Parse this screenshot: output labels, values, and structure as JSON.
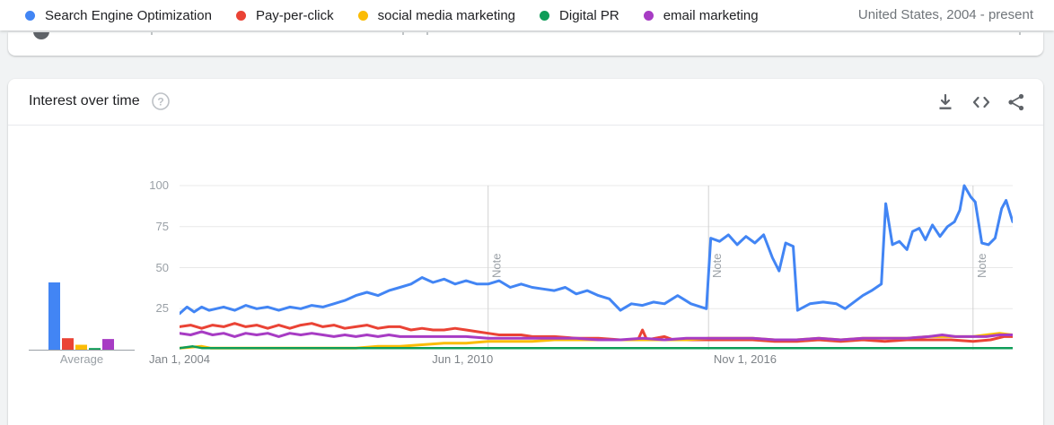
{
  "legend": {
    "items": [
      {
        "label": "Search Engine Optimization",
        "color": "#4285f4"
      },
      {
        "label": "Pay-per-click",
        "color": "#ea4335"
      },
      {
        "label": "social media marketing",
        "color": "#fbbc05"
      },
      {
        "label": "Digital PR",
        "color": "#0f9d58"
      },
      {
        "label": "email marketing",
        "color": "#a73cc4"
      }
    ],
    "region_period": "United States, 2004 - present"
  },
  "widget": {
    "title": "Interest over time",
    "icons": {
      "help": "help-circle-icon",
      "download": "download-icon",
      "embed": "embed-code-icon",
      "share": "share-icon"
    }
  },
  "chart_data": {
    "type": "line",
    "title": "Interest over time",
    "x_range": [
      2004.0,
      2022.9
    ],
    "ylim": [
      0,
      100
    ],
    "y_ticks": [
      25,
      50,
      75,
      100
    ],
    "x_ticks": [
      {
        "year": 2004.0,
        "label": "Jan 1, 2004"
      },
      {
        "year": 2010.42,
        "label": "Jun 1, 2010"
      },
      {
        "year": 2016.83,
        "label": "Nov 1, 2016"
      }
    ],
    "notes": [
      {
        "year": 2011.0,
        "label": "Note"
      },
      {
        "year": 2016.0,
        "label": "Note"
      },
      {
        "year": 2022.0,
        "label": "Note"
      }
    ],
    "grid": "horizontal gridlines at y ticks; vertical lines only at notes",
    "legend_position": "top",
    "series": [
      {
        "name": "Search Engine Optimization",
        "color": "#4285f4",
        "width": 3,
        "points": [
          [
            2004.0,
            22
          ],
          [
            2004.17,
            26
          ],
          [
            2004.33,
            23
          ],
          [
            2004.5,
            26
          ],
          [
            2004.67,
            24
          ],
          [
            2004.83,
            25
          ],
          [
            2005.0,
            26
          ],
          [
            2005.25,
            24
          ],
          [
            2005.5,
            27
          ],
          [
            2005.75,
            25
          ],
          [
            2006.0,
            26
          ],
          [
            2006.25,
            24
          ],
          [
            2006.5,
            26
          ],
          [
            2006.75,
            25
          ],
          [
            2007.0,
            27
          ],
          [
            2007.25,
            26
          ],
          [
            2007.5,
            28
          ],
          [
            2007.75,
            30
          ],
          [
            2008.0,
            33
          ],
          [
            2008.25,
            35
          ],
          [
            2008.5,
            33
          ],
          [
            2008.75,
            36
          ],
          [
            2009.0,
            38
          ],
          [
            2009.25,
            40
          ],
          [
            2009.5,
            44
          ],
          [
            2009.75,
            41
          ],
          [
            2010.0,
            43
          ],
          [
            2010.25,
            40
          ],
          [
            2010.5,
            42
          ],
          [
            2010.75,
            40
          ],
          [
            2011.0,
            40
          ],
          [
            2011.25,
            42
          ],
          [
            2011.5,
            38
          ],
          [
            2011.75,
            40
          ],
          [
            2012.0,
            38
          ],
          [
            2012.25,
            37
          ],
          [
            2012.5,
            36
          ],
          [
            2012.75,
            38
          ],
          [
            2013.0,
            34
          ],
          [
            2013.25,
            36
          ],
          [
            2013.5,
            33
          ],
          [
            2013.75,
            31
          ],
          [
            2014.0,
            24
          ],
          [
            2014.25,
            28
          ],
          [
            2014.5,
            27
          ],
          [
            2014.75,
            29
          ],
          [
            2015.0,
            28
          ],
          [
            2015.3,
            33
          ],
          [
            2015.6,
            28
          ],
          [
            2015.95,
            25
          ],
          [
            2016.05,
            68
          ],
          [
            2016.25,
            66
          ],
          [
            2016.45,
            70
          ],
          [
            2016.65,
            64
          ],
          [
            2016.85,
            69
          ],
          [
            2017.05,
            65
          ],
          [
            2017.25,
            70
          ],
          [
            2017.45,
            56
          ],
          [
            2017.6,
            48
          ],
          [
            2017.75,
            65
          ],
          [
            2017.92,
            63
          ],
          [
            2018.02,
            24
          ],
          [
            2018.3,
            28
          ],
          [
            2018.6,
            29
          ],
          [
            2018.9,
            28
          ],
          [
            2019.1,
            25
          ],
          [
            2019.3,
            29
          ],
          [
            2019.5,
            33
          ],
          [
            2019.7,
            36
          ],
          [
            2019.92,
            40
          ],
          [
            2020.02,
            89
          ],
          [
            2020.17,
            64
          ],
          [
            2020.33,
            66
          ],
          [
            2020.5,
            61
          ],
          [
            2020.63,
            72
          ],
          [
            2020.78,
            74
          ],
          [
            2020.92,
            67
          ],
          [
            2021.08,
            76
          ],
          [
            2021.25,
            69
          ],
          [
            2021.42,
            75
          ],
          [
            2021.58,
            78
          ],
          [
            2021.7,
            85
          ],
          [
            2021.8,
            100
          ],
          [
            2021.95,
            93
          ],
          [
            2022.05,
            90
          ],
          [
            2022.2,
            65
          ],
          [
            2022.35,
            64
          ],
          [
            2022.5,
            68
          ],
          [
            2022.65,
            86
          ],
          [
            2022.75,
            91
          ],
          [
            2022.9,
            78
          ]
        ]
      },
      {
        "name": "Pay-per-click",
        "color": "#ea4335",
        "width": 3,
        "points": [
          [
            2004.0,
            14
          ],
          [
            2004.25,
            15
          ],
          [
            2004.5,
            13
          ],
          [
            2004.75,
            15
          ],
          [
            2005.0,
            14
          ],
          [
            2005.25,
            16
          ],
          [
            2005.5,
            14
          ],
          [
            2005.75,
            15
          ],
          [
            2006.0,
            13
          ],
          [
            2006.25,
            15
          ],
          [
            2006.5,
            13
          ],
          [
            2006.75,
            15
          ],
          [
            2007.0,
            16
          ],
          [
            2007.25,
            14
          ],
          [
            2007.5,
            15
          ],
          [
            2007.75,
            13
          ],
          [
            2008.0,
            14
          ],
          [
            2008.25,
            15
          ],
          [
            2008.5,
            13
          ],
          [
            2008.75,
            14
          ],
          [
            2009.0,
            14
          ],
          [
            2009.25,
            12
          ],
          [
            2009.5,
            13
          ],
          [
            2009.75,
            12
          ],
          [
            2010.0,
            12
          ],
          [
            2010.25,
            13
          ],
          [
            2010.5,
            12
          ],
          [
            2010.75,
            11
          ],
          [
            2011.0,
            10
          ],
          [
            2011.25,
            9
          ],
          [
            2011.5,
            9
          ],
          [
            2011.75,
            9
          ],
          [
            2012.0,
            8
          ],
          [
            2012.5,
            8
          ],
          [
            2013.0,
            7
          ],
          [
            2013.5,
            7
          ],
          [
            2014.0,
            6
          ],
          [
            2014.4,
            6
          ],
          [
            2014.5,
            12
          ],
          [
            2014.6,
            6
          ],
          [
            2015.0,
            8
          ],
          [
            2015.2,
            6
          ],
          [
            2015.6,
            6
          ],
          [
            2016.0,
            6
          ],
          [
            2016.5,
            6
          ],
          [
            2017.0,
            6
          ],
          [
            2017.5,
            5
          ],
          [
            2018.0,
            5
          ],
          [
            2018.5,
            6
          ],
          [
            2019.0,
            5
          ],
          [
            2019.5,
            6
          ],
          [
            2020.0,
            5
          ],
          [
            2020.5,
            6
          ],
          [
            2021.0,
            6
          ],
          [
            2021.5,
            6
          ],
          [
            2022.0,
            5
          ],
          [
            2022.4,
            6
          ],
          [
            2022.7,
            8
          ],
          [
            2022.9,
            8
          ]
        ]
      },
      {
        "name": "social media marketing",
        "color": "#fbbc05",
        "width": 3,
        "points": [
          [
            2004.0,
            1
          ],
          [
            2004.5,
            2
          ],
          [
            2004.7,
            1
          ],
          [
            2005.0,
            1
          ],
          [
            2005.5,
            1
          ],
          [
            2006.0,
            1
          ],
          [
            2006.5,
            1
          ],
          [
            2007.0,
            1
          ],
          [
            2007.5,
            1
          ],
          [
            2008.0,
            1
          ],
          [
            2008.5,
            2
          ],
          [
            2009.0,
            2
          ],
          [
            2009.5,
            3
          ],
          [
            2010.0,
            4
          ],
          [
            2010.5,
            4
          ],
          [
            2011.0,
            5
          ],
          [
            2011.5,
            5
          ],
          [
            2012.0,
            5
          ],
          [
            2012.5,
            6
          ],
          [
            2013.0,
            6
          ],
          [
            2013.5,
            6
          ],
          [
            2014.0,
            6
          ],
          [
            2014.5,
            6
          ],
          [
            2015.0,
            6
          ],
          [
            2015.5,
            6
          ],
          [
            2016.0,
            7
          ],
          [
            2016.5,
            7
          ],
          [
            2017.0,
            7
          ],
          [
            2017.5,
            6
          ],
          [
            2018.0,
            6
          ],
          [
            2018.5,
            7
          ],
          [
            2019.0,
            6
          ],
          [
            2019.5,
            7
          ],
          [
            2020.0,
            7
          ],
          [
            2020.5,
            7
          ],
          [
            2021.0,
            8
          ],
          [
            2021.5,
            8
          ],
          [
            2022.0,
            8
          ],
          [
            2022.3,
            9
          ],
          [
            2022.6,
            10
          ],
          [
            2022.9,
            9
          ]
        ]
      },
      {
        "name": "Digital PR",
        "color": "#0f9d58",
        "width": 2.5,
        "points": [
          [
            2004.0,
            1
          ],
          [
            2004.3,
            2
          ],
          [
            2004.5,
            1
          ],
          [
            2005.0,
            1
          ],
          [
            2006.0,
            1
          ],
          [
            2007.0,
            1
          ],
          [
            2008.0,
            1
          ],
          [
            2009.0,
            1
          ],
          [
            2010.0,
            1
          ],
          [
            2011.0,
            1
          ],
          [
            2012.0,
            1
          ],
          [
            2013.0,
            1
          ],
          [
            2014.0,
            1
          ],
          [
            2015.0,
            1
          ],
          [
            2016.0,
            1
          ],
          [
            2017.0,
            1
          ],
          [
            2018.0,
            1
          ],
          [
            2019.0,
            1
          ],
          [
            2020.0,
            1
          ],
          [
            2021.0,
            1
          ],
          [
            2022.0,
            1
          ],
          [
            2022.9,
            1
          ]
        ]
      },
      {
        "name": "email marketing",
        "color": "#a73cc4",
        "width": 3,
        "points": [
          [
            2004.0,
            10
          ],
          [
            2004.25,
            9
          ],
          [
            2004.5,
            11
          ],
          [
            2004.75,
            9
          ],
          [
            2005.0,
            10
          ],
          [
            2005.25,
            8
          ],
          [
            2005.5,
            10
          ],
          [
            2005.75,
            9
          ],
          [
            2006.0,
            10
          ],
          [
            2006.25,
            8
          ],
          [
            2006.5,
            10
          ],
          [
            2006.75,
            9
          ],
          [
            2007.0,
            10
          ],
          [
            2007.25,
            9
          ],
          [
            2007.5,
            8
          ],
          [
            2007.75,
            9
          ],
          [
            2008.0,
            8
          ],
          [
            2008.25,
            9
          ],
          [
            2008.5,
            8
          ],
          [
            2008.75,
            9
          ],
          [
            2009.0,
            8
          ],
          [
            2009.5,
            8
          ],
          [
            2010.0,
            8
          ],
          [
            2010.5,
            8
          ],
          [
            2011.0,
            7
          ],
          [
            2011.5,
            7
          ],
          [
            2012.0,
            7
          ],
          [
            2012.5,
            7
          ],
          [
            2013.0,
            7
          ],
          [
            2013.5,
            6
          ],
          [
            2014.0,
            6
          ],
          [
            2014.5,
            7
          ],
          [
            2015.0,
            6
          ],
          [
            2015.5,
            7
          ],
          [
            2016.0,
            7
          ],
          [
            2016.5,
            7
          ],
          [
            2017.0,
            7
          ],
          [
            2017.5,
            6
          ],
          [
            2018.0,
            6
          ],
          [
            2018.5,
            7
          ],
          [
            2019.0,
            6
          ],
          [
            2019.5,
            7
          ],
          [
            2020.0,
            7
          ],
          [
            2020.5,
            7
          ],
          [
            2021.0,
            8
          ],
          [
            2021.3,
            9
          ],
          [
            2021.6,
            8
          ],
          [
            2022.0,
            8
          ],
          [
            2022.3,
            8
          ],
          [
            2022.6,
            9
          ],
          [
            2022.9,
            9
          ]
        ]
      }
    ],
    "averages": {
      "label": "Average",
      "values": [
        {
          "term": "Search Engine Optimization",
          "value": 41
        },
        {
          "term": "Pay-per-click",
          "value": 7
        },
        {
          "term": "social media marketing",
          "value": 3
        },
        {
          "term": "Digital PR",
          "value": 1
        },
        {
          "term": "email marketing",
          "value": 6.5
        }
      ]
    }
  }
}
